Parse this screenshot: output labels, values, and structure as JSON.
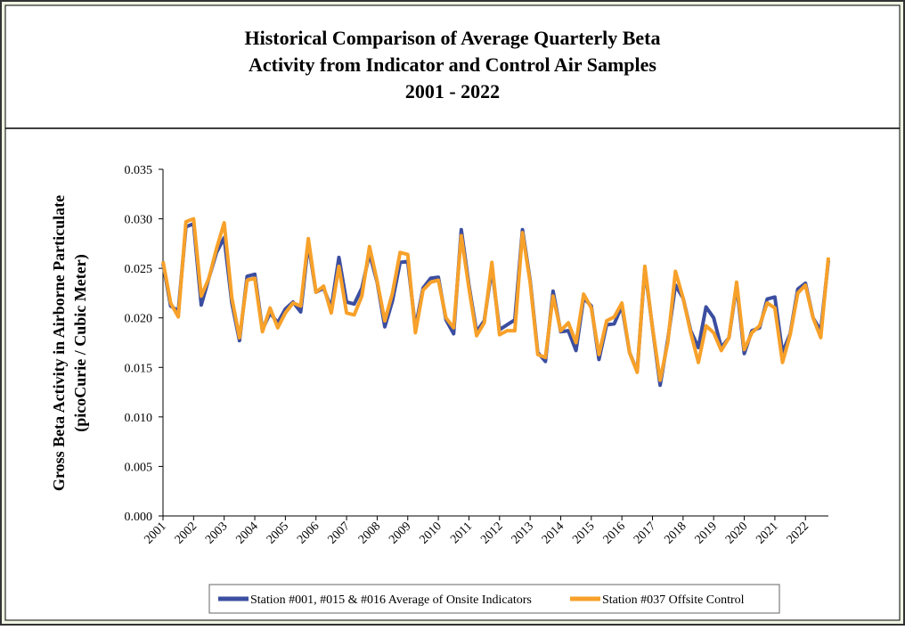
{
  "chart_data": {
    "type": "line",
    "title": [
      "Historical Comparison of Average Quarterly Beta",
      "Activity from Indicator and Control Air Samples",
      "2001 - 2022"
    ],
    "ylabel": [
      "Gross Beta Activity in Airborne Particulate",
      "(picoCurie / Cubic Meter)"
    ],
    "categories": [
      "2001",
      null,
      null,
      null,
      "2002",
      null,
      null,
      null,
      "2003",
      null,
      null,
      null,
      "2004",
      null,
      null,
      null,
      "2005",
      null,
      null,
      null,
      "2006",
      null,
      null,
      null,
      "2007",
      null,
      null,
      null,
      "2008",
      null,
      null,
      null,
      "2009",
      null,
      null,
      null,
      "2010",
      null,
      null,
      null,
      "2011",
      null,
      null,
      null,
      "2012",
      null,
      null,
      null,
      "2013",
      null,
      null,
      null,
      "2014",
      null,
      null,
      null,
      "2015",
      null,
      null,
      null,
      "2016",
      null,
      null,
      null,
      "2017",
      null,
      null,
      null,
      "2018",
      null,
      null,
      null,
      "2019",
      null,
      null,
      null,
      "2020",
      null,
      null,
      null,
      "2021",
      null,
      null,
      null,
      "2022",
      null,
      null,
      null
    ],
    "series": [
      {
        "name": "Station #001, #015 & #016 Average of Onsite Indicators",
        "color": "#3b4ea0",
        "values": [
          0.0255,
          0.0212,
          0.0207,
          0.0292,
          0.0295,
          0.0213,
          0.024,
          0.0266,
          0.0281,
          0.0215,
          0.0177,
          0.0242,
          0.0244,
          0.0188,
          0.0205,
          0.0195,
          0.0209,
          0.0216,
          0.0206,
          0.0275,
          0.0226,
          0.023,
          0.021,
          0.0261,
          0.0216,
          0.0214,
          0.023,
          0.0265,
          0.0236,
          0.0191,
          0.0217,
          0.0256,
          0.0257,
          0.019,
          0.023,
          0.024,
          0.0241,
          0.0198,
          0.0184,
          0.0289,
          0.0233,
          0.0186,
          0.0197,
          0.025,
          0.0188,
          0.0193,
          0.0198,
          0.0289,
          0.0238,
          0.0165,
          0.0156,
          0.0227,
          0.0186,
          0.0187,
          0.0167,
          0.022,
          0.0212,
          0.0158,
          0.0193,
          0.0194,
          0.0212,
          0.0165,
          0.0146,
          0.025,
          0.019,
          0.0132,
          0.0178,
          0.0233,
          0.022,
          0.0187,
          0.017,
          0.0211,
          0.02,
          0.017,
          0.018,
          0.0233,
          0.0164,
          0.0187,
          0.019,
          0.0219,
          0.0221,
          0.0165,
          0.0184,
          0.0229,
          0.0235,
          0.02,
          0.0187,
          0.0258
        ]
      },
      {
        "name": "Station #037 Offsite Control",
        "color": "#f7a12a",
        "values": [
          0.0257,
          0.0215,
          0.0201,
          0.0297,
          0.03,
          0.0222,
          0.024,
          0.027,
          0.0296,
          0.022,
          0.018,
          0.0238,
          0.024,
          0.0186,
          0.021,
          0.019,
          0.0205,
          0.0215,
          0.0212,
          0.028,
          0.0226,
          0.0232,
          0.0205,
          0.0252,
          0.0205,
          0.0203,
          0.0222,
          0.0272,
          0.0237,
          0.0197,
          0.0225,
          0.0266,
          0.0264,
          0.0185,
          0.0228,
          0.0236,
          0.0238,
          0.02,
          0.019,
          0.0283,
          0.023,
          0.0182,
          0.0195,
          0.0256,
          0.0183,
          0.0187,
          0.0187,
          0.0286,
          0.0236,
          0.0163,
          0.016,
          0.0222,
          0.0187,
          0.0195,
          0.0175,
          0.0224,
          0.021,
          0.0163,
          0.0197,
          0.0201,
          0.0215,
          0.0165,
          0.0145,
          0.0252,
          0.019,
          0.0137,
          0.0175,
          0.0247,
          0.022,
          0.0185,
          0.0155,
          0.0192,
          0.0185,
          0.0167,
          0.018,
          0.0236,
          0.0168,
          0.0185,
          0.0192,
          0.0215,
          0.021,
          0.0155,
          0.0183,
          0.0225,
          0.0233,
          0.02,
          0.018,
          0.0261
        ]
      }
    ],
    "ylim": [
      0,
      0.035
    ],
    "yticks": [
      {
        "value": 0,
        "label": "0.000"
      },
      0.005,
      {
        "value": 0.01,
        "label": "0.010"
      },
      0.015,
      {
        "value": 0.02,
        "label": "0.020"
      },
      0.025,
      {
        "value": 0.03,
        "label": "0.030"
      },
      0.035
    ]
  }
}
